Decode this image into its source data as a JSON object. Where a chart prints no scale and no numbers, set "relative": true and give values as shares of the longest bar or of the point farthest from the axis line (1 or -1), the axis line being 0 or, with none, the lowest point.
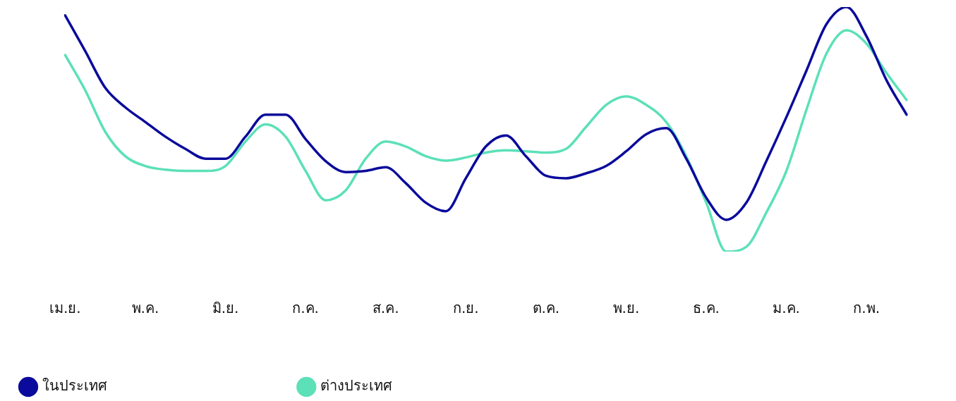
{
  "chart_data": {
    "type": "line",
    "relative": true,
    "categories": [
      "เม.ย.",
      null,
      null,
      null,
      "พ.ค.",
      null,
      null,
      null,
      "มิ.ย.",
      null,
      null,
      null,
      "ก.ค.",
      null,
      null,
      null,
      "ส.ค.",
      null,
      null,
      null,
      "ก.ย.",
      null,
      null,
      null,
      "ต.ค.",
      null,
      null,
      null,
      "พ.ย.",
      null,
      null,
      null,
      "ธ.ค.",
      null,
      null,
      null,
      "ม.ค.",
      null,
      null,
      null,
      "ก.พ.",
      null,
      null
    ],
    "series": [
      {
        "name": "ในประเทศ",
        "color": "#0a0a9c",
        "values": [
          0.966,
          0.82,
          0.67,
          0.59,
          0.53,
          0.47,
          0.42,
          0.38,
          0.38,
          0.47,
          0.56,
          0.56,
          0.46,
          0.37,
          0.325,
          0.33,
          0.345,
          0.28,
          0.2,
          0.165,
          0.3,
          0.43,
          0.475,
          0.39,
          0.31,
          0.3,
          0.32,
          0.35,
          0.41,
          0.48,
          0.505,
          0.38,
          0.22,
          0.13,
          0.2,
          0.37,
          0.55,
          0.74,
          0.93,
          1,
          0.88,
          0.7,
          0.56
        ]
      },
      {
        "name": "ต่างประเทศ",
        "color": "#5ce0b8",
        "values": [
          0.804,
          0.66,
          0.49,
          0.39,
          0.35,
          0.335,
          0.33,
          0.33,
          0.35,
          0.45,
          0.52,
          0.47,
          0.33,
          0.21,
          0.25,
          0.38,
          0.45,
          0.43,
          0.39,
          0.372,
          0.385,
          0.405,
          0.414,
          0.41,
          0.405,
          0.42,
          0.51,
          0.6,
          0.635,
          0.6,
          0.53,
          0.39,
          0.2,
          0,
          0.02,
          0.16,
          0.33,
          0.58,
          0.81,
          0.905,
          0.85,
          0.73,
          0.62
        ]
      }
    ],
    "grid": false,
    "legend": "bottom left",
    "marker": "none",
    "line_style": "solid"
  }
}
